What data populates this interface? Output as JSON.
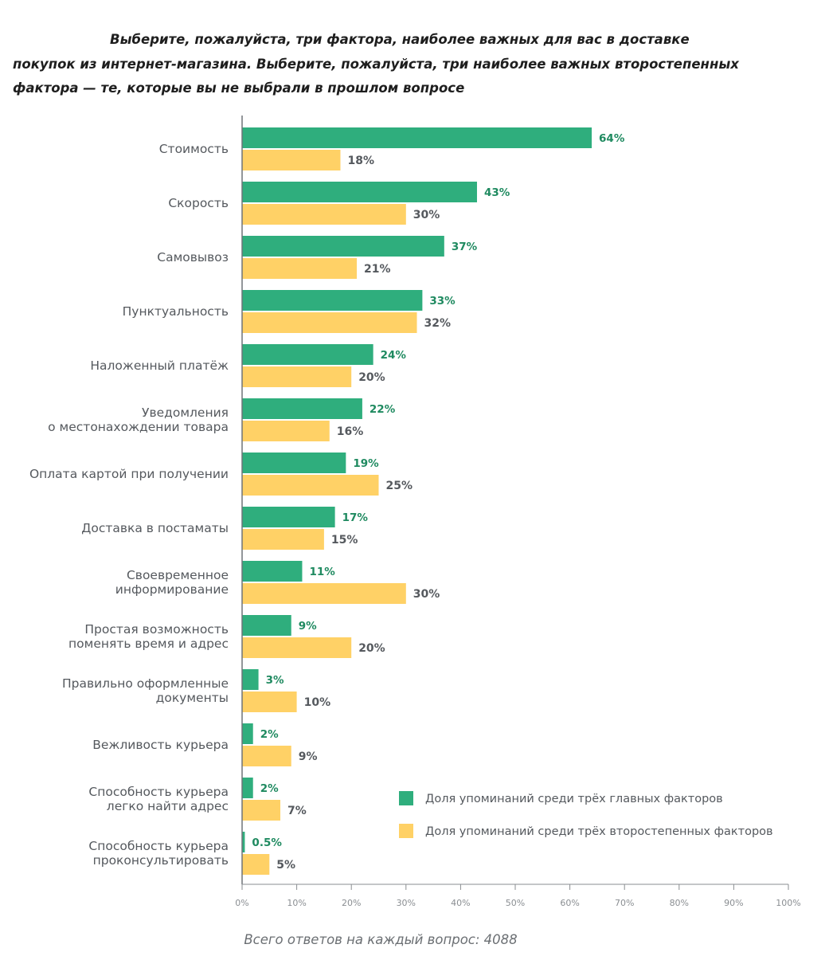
{
  "title_lines": [
    "Выберите, пожалуйста, три фактора, наиболее важных для вас в доставке",
    "покупок из интернет-магазина. Выберите, пожалуйста, три наиболее важных второстепенных",
    "фактора — те, которые вы не выбрали в прошлом вопросе"
  ],
  "footer": "Всего ответов на каждый вопрос: 4088",
  "colors": {
    "primary": "#2fae7d",
    "secondary": "#ffd166",
    "primary_text": "#1f8a60",
    "axis": "#8a8e92"
  },
  "chart_data": {
    "type": "bar",
    "orientation": "horizontal",
    "categories": [
      [
        "Стоимость"
      ],
      [
        "Скорость"
      ],
      [
        "Самовывоз"
      ],
      [
        "Пунктуальность"
      ],
      [
        "Наложенный платёж"
      ],
      [
        "Уведомления",
        "о местонахождении товара"
      ],
      [
        "Оплата картой при получении"
      ],
      [
        "Доставка в постаматы"
      ],
      [
        "Своевременное",
        "информирование"
      ],
      [
        "Простая возможность",
        "поменять время и адрес"
      ],
      [
        "Правильно оформленные",
        "документы"
      ],
      [
        "Вежливость курьера"
      ],
      [
        "Способность курьера",
        "легко найти адрес"
      ],
      [
        "Способность курьера",
        "проконсультировать"
      ]
    ],
    "series": [
      {
        "name": "Доля упоминаний среди трёх главных факторов",
        "values": [
          64,
          43,
          37,
          33,
          24,
          22,
          19,
          17,
          11,
          9,
          3,
          2,
          2,
          0.5
        ],
        "labels": [
          "64%",
          "43%",
          "37%",
          "33%",
          "24%",
          "22%",
          "19%",
          "17%",
          "11%",
          "9%",
          "3%",
          "2%",
          "2%",
          "0.5%"
        ]
      },
      {
        "name": "Доля упоминаний среди трёх второстепенных факторов",
        "values": [
          18,
          30,
          21,
          32,
          20,
          16,
          25,
          15,
          30,
          20,
          10,
          9,
          7,
          5
        ],
        "labels": [
          "18%",
          "30%",
          "21%",
          "32%",
          "20%",
          "16%",
          "25%",
          "15%",
          "30%",
          "20%",
          "10%",
          "9%",
          "7%",
          "5%"
        ]
      }
    ],
    "xlim": [
      0,
      100
    ],
    "ticks": [
      "0%",
      "10%",
      "20%",
      "30%",
      "40%",
      "50%",
      "60%",
      "70%",
      "80%",
      "90%",
      "100%"
    ],
    "legend_position": "bottom-right",
    "grid": false
  }
}
